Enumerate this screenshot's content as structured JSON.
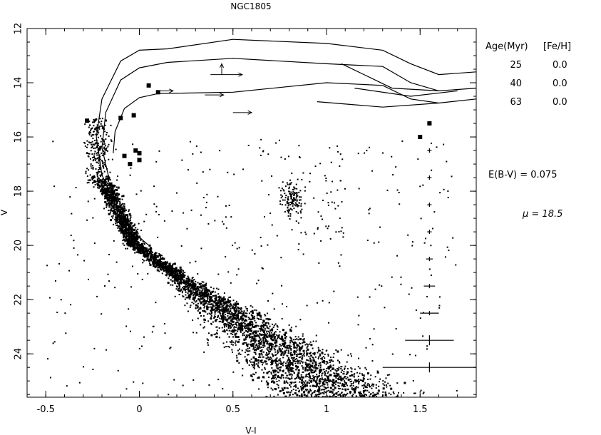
{
  "chart_data": {
    "type": "scatter",
    "title": "NGC1805",
    "xlabel": "V-I",
    "ylabel": "V",
    "xlim": [
      -0.6,
      1.8
    ],
    "ylim": [
      25.6,
      12.0
    ],
    "y_inverted": true,
    "x_ticks": [
      -0.5,
      0,
      0.5,
      1,
      1.5
    ],
    "x_tick_labels": [
      "-0.5",
      "0",
      "0.5",
      "1",
      "1.5"
    ],
    "y_ticks": [
      12,
      14,
      16,
      18,
      20,
      22,
      24
    ],
    "y_tick_labels": [
      "12",
      "14",
      "16",
      "18",
      "20",
      "22",
      "24"
    ],
    "grid": false,
    "legend": {
      "header": [
        "Age(Myr)",
        "[Fe/H]"
      ],
      "rows": [
        [
          "25",
          "0.0"
        ],
        [
          "40",
          "0.0"
        ],
        [
          "63",
          "0.0"
        ]
      ],
      "placement": "right"
    },
    "annotations": [
      "E(B-V) = 0.075",
      "μ = 18.5"
    ],
    "isochrones": [
      {
        "age_myr": 25,
        "feh": 0.0,
        "points": [
          [
            1.8,
            13.6
          ],
          [
            1.6,
            13.7
          ],
          [
            1.45,
            13.3
          ],
          [
            1.3,
            12.8
          ],
          [
            1.0,
            12.55
          ],
          [
            0.5,
            12.4
          ],
          [
            0.15,
            12.75
          ],
          [
            0.0,
            12.8
          ],
          [
            -0.1,
            13.2
          ],
          [
            -0.2,
            14.6
          ],
          [
            -0.23,
            16.0
          ],
          [
            -0.2,
            17.4
          ],
          [
            -0.12,
            18.6
          ],
          [
            -0.05,
            19.4
          ],
          [
            0.05,
            20.0
          ]
        ]
      },
      {
        "age_myr": 40,
        "feh": 0.0,
        "points": [
          [
            1.8,
            14.2
          ],
          [
            1.6,
            14.3
          ],
          [
            1.45,
            14.0
          ],
          [
            1.3,
            13.4
          ],
          [
            1.0,
            13.3
          ],
          [
            0.5,
            13.1
          ],
          [
            0.15,
            13.25
          ],
          [
            0.0,
            13.45
          ],
          [
            -0.1,
            13.9
          ],
          [
            -0.18,
            15.1
          ],
          [
            -0.2,
            16.4
          ],
          [
            -0.16,
            17.6
          ]
        ]
      },
      {
        "age_myr": 63,
        "feh": 0.0,
        "points": [
          [
            1.8,
            14.6
          ],
          [
            1.6,
            14.75
          ],
          [
            1.45,
            14.6
          ],
          [
            1.3,
            14.1
          ],
          [
            1.0,
            14.0
          ],
          [
            0.5,
            14.35
          ],
          [
            0.1,
            14.4
          ],
          [
            0.0,
            14.55
          ],
          [
            -0.08,
            14.95
          ],
          [
            -0.13,
            15.8
          ],
          [
            -0.14,
            16.6
          ]
        ]
      }
    ],
    "error_bars": [
      {
        "v": 15.5,
        "x_err": 0.005
      },
      {
        "v": 16.5,
        "x_err": 0.008
      },
      {
        "v": 17.5,
        "x_err": 0.01
      },
      {
        "v": 18.5,
        "x_err": 0.01
      },
      {
        "v": 19.5,
        "x_err": 0.012
      },
      {
        "v": 20.5,
        "x_err": 0.018
      },
      {
        "v": 21.5,
        "x_err": 0.03
      },
      {
        "v": 22.5,
        "x_err": 0.05
      },
      {
        "v": 23.5,
        "x_err": 0.13
      },
      {
        "v": 24.5,
        "x_err": 0.25
      }
    ],
    "bright_stars": [
      [
        -0.02,
        16.5
      ],
      [
        0.0,
        16.6
      ],
      [
        -0.08,
        16.7
      ],
      [
        0.0,
        16.85
      ],
      [
        -0.05,
        17.0
      ],
      [
        -0.1,
        15.3
      ],
      [
        -0.03,
        15.2
      ],
      [
        0.05,
        14.1
      ],
      [
        0.1,
        14.35
      ],
      [
        -0.28,
        15.4
      ],
      [
        1.5,
        16.0
      ],
      [
        1.55,
        15.5
      ]
    ],
    "arrows": [
      {
        "from": [
          0.1,
          14.3
        ],
        "to": [
          0.18,
          14.3
        ]
      },
      {
        "from": [
          0.35,
          14.45
        ],
        "to": [
          0.45,
          14.45
        ]
      },
      {
        "from": [
          0.5,
          15.1
        ],
        "to": [
          0.6,
          15.1
        ]
      },
      {
        "from": [
          0.38,
          13.7
        ],
        "to": [
          0.55,
          13.7
        ]
      },
      {
        "from": [
          0.44,
          13.7
        ],
        "to": [
          0.44,
          13.3
        ]
      }
    ]
  }
}
